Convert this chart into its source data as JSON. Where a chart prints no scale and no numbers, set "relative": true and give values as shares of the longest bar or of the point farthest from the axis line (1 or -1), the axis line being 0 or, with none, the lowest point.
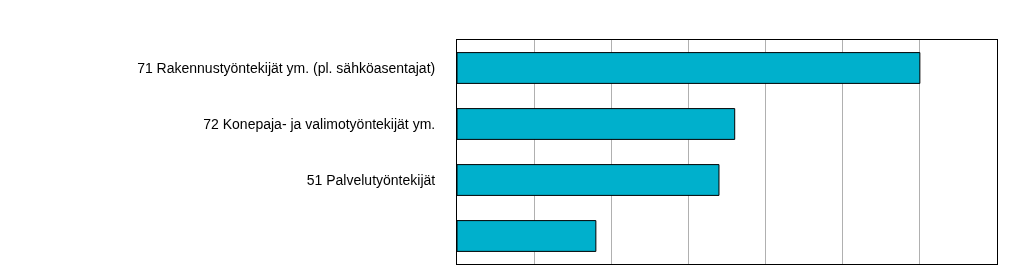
{
  "chart_data": {
    "type": "bar",
    "orientation": "horizontal",
    "relative": true,
    "categories": [
      "71 Rakennustyöntekijät ym. (pl. sähköasentajat)",
      "72 Konepaja- ja valimotyöntekijät ym.",
      "51 Palvelutyöntekijät",
      null
    ],
    "values": [
      1,
      0.6,
      0.566,
      0.3
    ],
    "color": "#00b0cc",
    "grid": "x",
    "legend": false,
    "tick_labels": "y"
  }
}
